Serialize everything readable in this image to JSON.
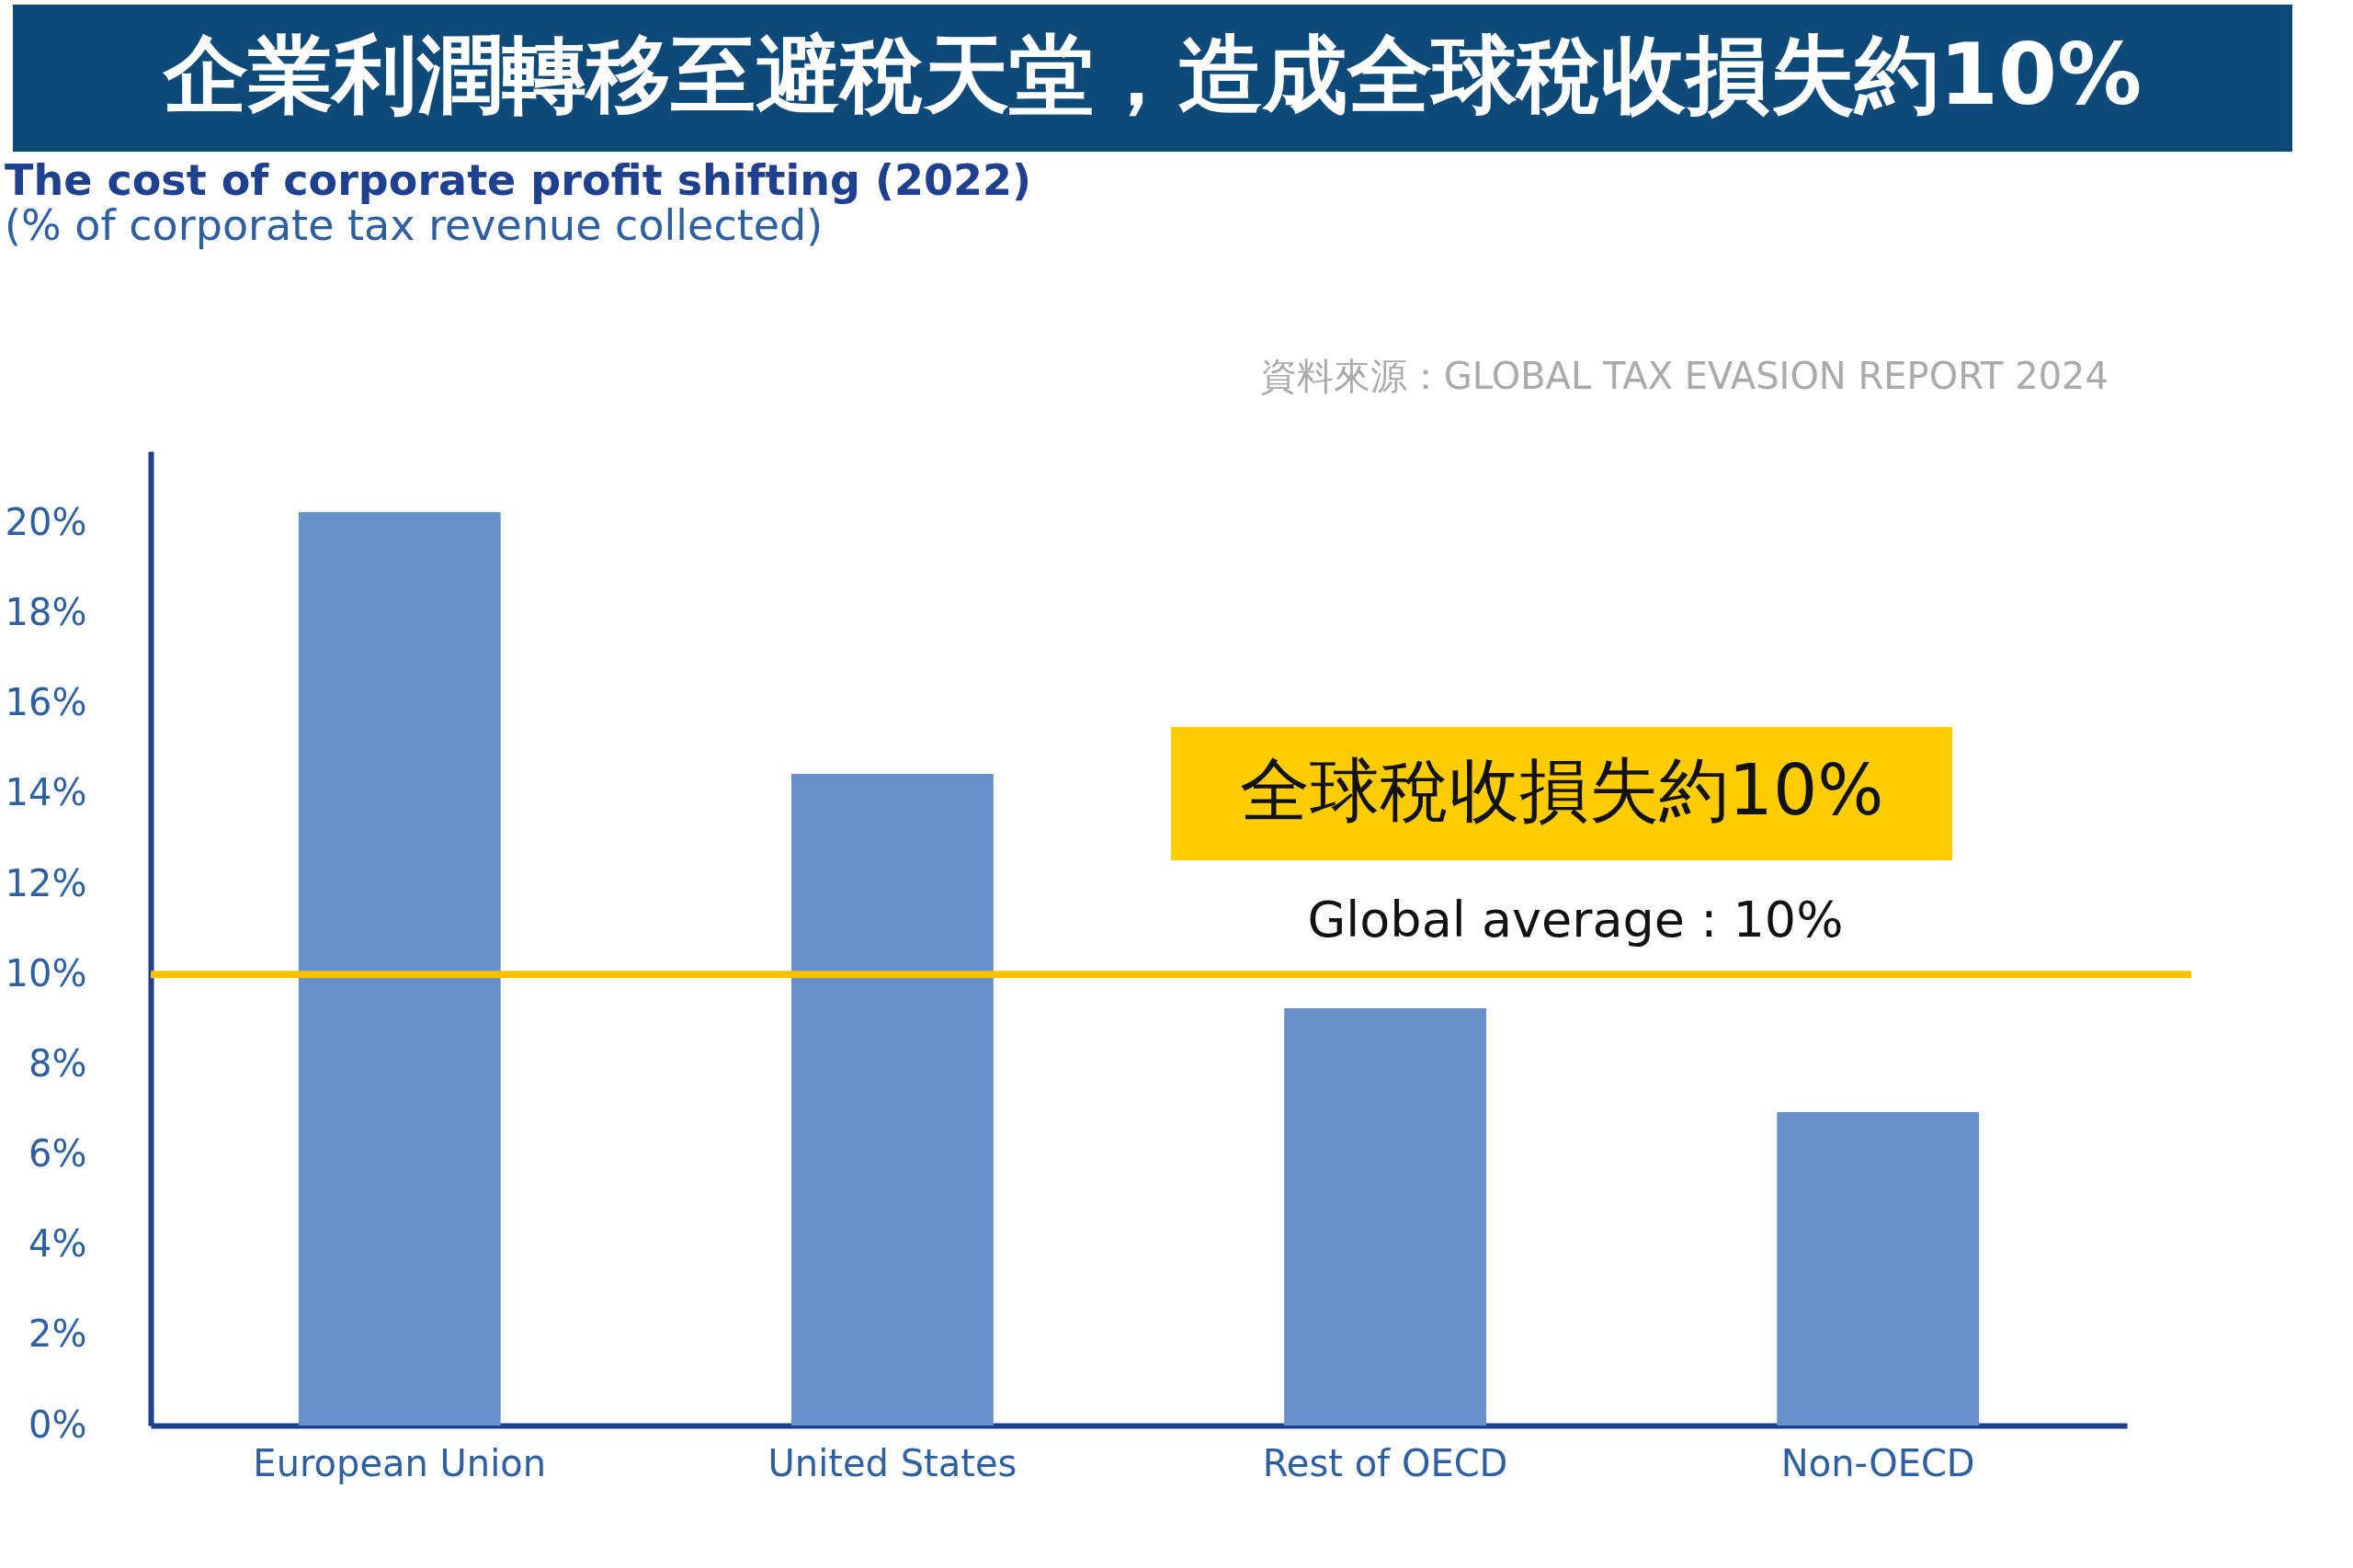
{
  "chart_data": {
    "type": "bar",
    "title": "企業利潤轉移至避稅天堂，造成全球稅收損失約10%",
    "subtitle": "The cost of corporate profit shifting (2022)",
    "ylabel": "(% of corporate tax revenue collected)",
    "categories": [
      "European Union",
      "United States",
      "Rest of OECD",
      "Non-OECD"
    ],
    "values": [
      20.25,
      14.45,
      9.25,
      6.95
    ],
    "color": "#678fc9",
    "ylim": [
      0,
      21.6
    ],
    "yticks": [
      {
        "value": 0,
        "label": "0%"
      },
      {
        "value": 2,
        "label": "2%"
      },
      {
        "value": 4,
        "label": "4%"
      },
      {
        "value": 6,
        "label": "6%"
      },
      {
        "value": 8,
        "label": "8%"
      },
      {
        "value": 10,
        "label": "10%"
      },
      {
        "value": 12,
        "label": "12%"
      },
      {
        "value": 14,
        "label": "14%"
      },
      {
        "value": 16,
        "label": "16%"
      },
      {
        "value": 18,
        "label": "18%"
      },
      {
        "value": 20,
        "label": "20%"
      }
    ],
    "ref_lines": [
      {
        "axis": "y",
        "value": 10,
        "label": "Global average : 10%",
        "color": "#f5c200"
      }
    ],
    "annotations": [
      "資料來源：GLOBAL  TAX EVASION  REPORT 2024",
      "全球稅收損失約10%"
    ],
    "grid": false
  }
}
